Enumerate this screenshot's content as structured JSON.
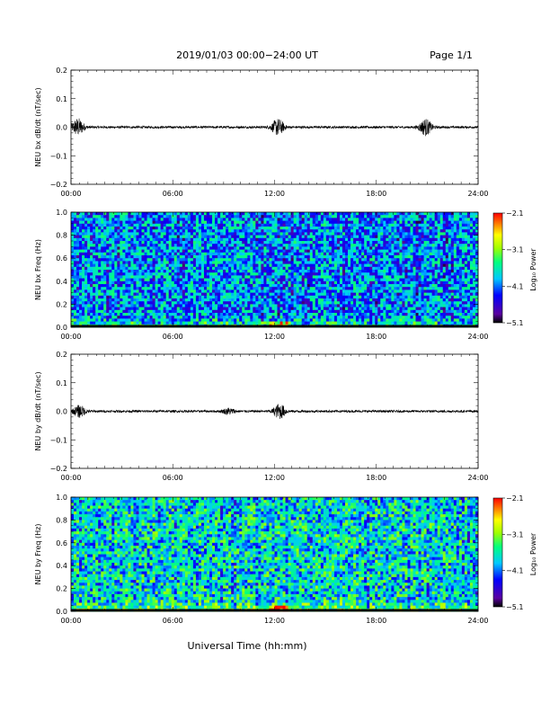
{
  "header": {
    "title": "2019/01/03  00:00−24:00 UT",
    "page": "Page 1/1"
  },
  "colors": {
    "trace": "#000000",
    "colormap": [
      "#000000",
      "#5a00a0",
      "#0000ff",
      "#00c8ff",
      "#00ff80",
      "#a0ff00",
      "#ffff00",
      "#ff8000",
      "#ff0000"
    ]
  },
  "chart_data": [
    {
      "type": "line",
      "ylabel": "NEU bx dB/dt (nT/sec)",
      "xlim": [
        0,
        24
      ],
      "ylim": [
        -0.2,
        0.2
      ],
      "y_ticks": [
        "0.2",
        "0.1",
        "0.0",
        "−0.1",
        "−0.2"
      ],
      "y_tick_values": [
        0.2,
        0.1,
        0.0,
        -0.1,
        -0.2
      ],
      "x_ticks": [
        "00:00",
        "06:00",
        "12:00",
        "18:00",
        "24:00"
      ],
      "baseline": 0.0,
      "noise": 0.004,
      "bursts": [
        {
          "t": 0.4,
          "amp": 0.03
        },
        {
          "t": 12.2,
          "amp": 0.028
        },
        {
          "t": 20.9,
          "amp": 0.028
        }
      ]
    },
    {
      "type": "heatmap",
      "ylabel": "NEU bx Freq (Hz)",
      "xlim": [
        0,
        24
      ],
      "ylim": [
        0,
        1.0
      ],
      "y_ticks": [
        "1.0",
        "0.8",
        "0.6",
        "0.4",
        "0.2",
        "0.0"
      ],
      "y_tick_values": [
        1.0,
        0.8,
        0.6,
        0.4,
        0.2,
        0.0
      ],
      "x_ticks": [
        "00:00",
        "06:00",
        "12:00",
        "18:00",
        "24:00"
      ],
      "colorbar": {
        "label": "Log₁₀ Power",
        "ticks": [
          "−2.1",
          "−3.1",
          "−4.1",
          "−5.1"
        ],
        "range": [
          -5.1,
          -2.1
        ]
      },
      "mean_log_power": -4.0,
      "low_freq_enhancement_hz": 0.1
    },
    {
      "type": "line",
      "ylabel": "NEU by dB/dt (nT/sec)",
      "xlim": [
        0,
        24
      ],
      "ylim": [
        -0.2,
        0.2
      ],
      "y_ticks": [
        "0.2",
        "0.1",
        "0.0",
        "−0.1",
        "−0.2"
      ],
      "y_tick_values": [
        0.2,
        0.1,
        0.0,
        -0.1,
        -0.2
      ],
      "x_ticks": [
        "00:00",
        "06:00",
        "12:00",
        "18:00",
        "24:00"
      ],
      "baseline": 0.0,
      "noise": 0.004,
      "bursts": [
        {
          "t": 0.5,
          "amp": 0.02
        },
        {
          "t": 9.3,
          "amp": 0.01
        },
        {
          "t": 12.3,
          "amp": 0.025
        }
      ]
    },
    {
      "type": "heatmap",
      "ylabel": "NEU by Freq (Hz)",
      "xlim": [
        0,
        24
      ],
      "ylim": [
        0,
        1.0
      ],
      "y_ticks": [
        "1.0",
        "0.8",
        "0.6",
        "0.4",
        "0.2",
        "0.0"
      ],
      "y_tick_values": [
        1.0,
        0.8,
        0.6,
        0.4,
        0.2,
        0.0
      ],
      "x_ticks": [
        "00:00",
        "06:00",
        "12:00",
        "18:00",
        "24:00"
      ],
      "colorbar": {
        "label": "Log₁₀ Power",
        "ticks": [
          "−2.1",
          "−3.1",
          "−4.1",
          "−5.1"
        ],
        "range": [
          -5.1,
          -2.1
        ]
      },
      "mean_log_power": -3.7,
      "low_freq_enhancement_hz": 0.1
    }
  ],
  "xlabel": "Universal Time (hh:mm)"
}
